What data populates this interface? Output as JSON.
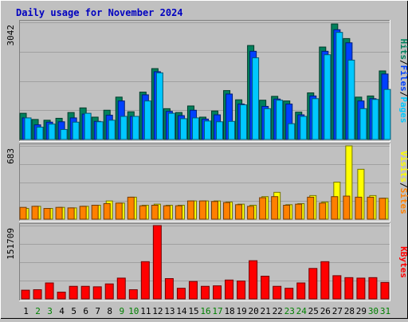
{
  "title": "Daily usage for November 2024",
  "colors": {
    "background": "#c0c0c0",
    "plot": "#c0c0c0",
    "grid": "#a0a0a0",
    "title": "#0000c0",
    "axis_label": "#000000",
    "hits": "#00805c",
    "files": "#0040ff",
    "pages": "#00c8ff",
    "visits": "#ffff00",
    "sites": "#ff8000",
    "kbytes": "#ff0000",
    "weekend_day": "#008000",
    "weekday": "#000000"
  },
  "chart_data": [
    {
      "type": "bar",
      "title": "Daily usage for November 2024",
      "categories": [
        "1",
        "2",
        "3",
        "4",
        "5",
        "6",
        "7",
        "8",
        "9",
        "10",
        "11",
        "12",
        "13",
        "14",
        "15",
        "16",
        "17",
        "18",
        "19",
        "20",
        "21",
        "22",
        "23",
        "24",
        "25",
        "26",
        "27",
        "28",
        "29",
        "30",
        "31"
      ],
      "weekend_categories": [
        "2",
        "3",
        "9",
        "10",
        "16",
        "17",
        "23",
        "24",
        "30",
        "31"
      ],
      "ylabel_parts": [
        "Pages",
        "Files",
        "Hits"
      ],
      "ymax_label": "3042",
      "ylim": [
        0,
        3042
      ],
      "grid": true,
      "series": [
        {
          "name": "Hits",
          "color": "#00805c",
          "values": [
            680,
            520,
            500,
            550,
            700,
            820,
            580,
            760,
            1100,
            720,
            1230,
            1840,
            800,
            700,
            870,
            580,
            740,
            1270,
            1030,
            2440,
            1020,
            1120,
            1000,
            710,
            1210,
            2400,
            3000,
            2620,
            1100,
            1130,
            1780
          ]
        },
        {
          "name": "Files",
          "color": "#0040ff",
          "values": [
            560,
            380,
            450,
            460,
            560,
            660,
            470,
            630,
            1000,
            600,
            1160,
            1760,
            730,
            620,
            760,
            530,
            640,
            1180,
            920,
            2290,
            860,
            1050,
            920,
            640,
            1130,
            2290,
            2850,
            2510,
            1000,
            1060,
            1700
          ]
        },
        {
          "name": "Pages",
          "color": "#00c8ff",
          "values": [
            560,
            320,
            400,
            260,
            450,
            680,
            460,
            500,
            600,
            600,
            1000,
            1730,
            680,
            540,
            560,
            480,
            460,
            470,
            900,
            2120,
            800,
            1020,
            410,
            600,
            1060,
            2200,
            2780,
            2060,
            800,
            1040,
            1300
          ]
        }
      ]
    },
    {
      "type": "bar",
      "categories": [
        "1",
        "2",
        "3",
        "4",
        "5",
        "6",
        "7",
        "8",
        "9",
        "10",
        "11",
        "12",
        "13",
        "14",
        "15",
        "16",
        "17",
        "18",
        "19",
        "20",
        "21",
        "22",
        "23",
        "24",
        "25",
        "26",
        "27",
        "28",
        "29",
        "30",
        "31"
      ],
      "ylabel_parts": [
        "Sites",
        "Visits"
      ],
      "ymax_label": "683",
      "ylim": [
        0,
        683
      ],
      "grid": true,
      "series": [
        {
          "name": "Visits",
          "color": "#ffff00",
          "values": [
            100,
            120,
            100,
            110,
            105,
            120,
            130,
            170,
            150,
            205,
            130,
            140,
            130,
            130,
            170,
            170,
            170,
            160,
            140,
            130,
            210,
            250,
            135,
            145,
            220,
            160,
            345,
            683,
            465,
            220,
            195
          ]
        },
        {
          "name": "Sites",
          "color": "#ff8000",
          "values": [
            110,
            120,
            100,
            110,
            105,
            120,
            130,
            145,
            150,
            205,
            125,
            130,
            125,
            125,
            170,
            170,
            165,
            155,
            135,
            120,
            200,
            210,
            130,
            140,
            205,
            150,
            210,
            215,
            205,
            205,
            195
          ]
        }
      ]
    },
    {
      "type": "bar",
      "categories": [
        "1",
        "2",
        "3",
        "4",
        "5",
        "6",
        "7",
        "8",
        "9",
        "10",
        "11",
        "12",
        "13",
        "14",
        "15",
        "16",
        "17",
        "18",
        "19",
        "20",
        "21",
        "22",
        "23",
        "24",
        "25",
        "26",
        "27",
        "28",
        "29",
        "30",
        "31"
      ],
      "ylabel_parts": [
        "KBytes"
      ],
      "ymax_label": "151709",
      "ylim": [
        0,
        151709
      ],
      "grid": true,
      "series": [
        {
          "name": "KBytes",
          "color": "#ff0000",
          "values": [
            18000,
            19000,
            33000,
            14000,
            26000,
            26000,
            25000,
            31000,
            43000,
            19000,
            77000,
            151709,
            42000,
            22000,
            36000,
            26000,
            27000,
            39000,
            37000,
            79000,
            47000,
            26000,
            22000,
            33000,
            63000,
            77000,
            48000,
            44000,
            43000,
            44000,
            34000
          ]
        }
      ]
    }
  ]
}
